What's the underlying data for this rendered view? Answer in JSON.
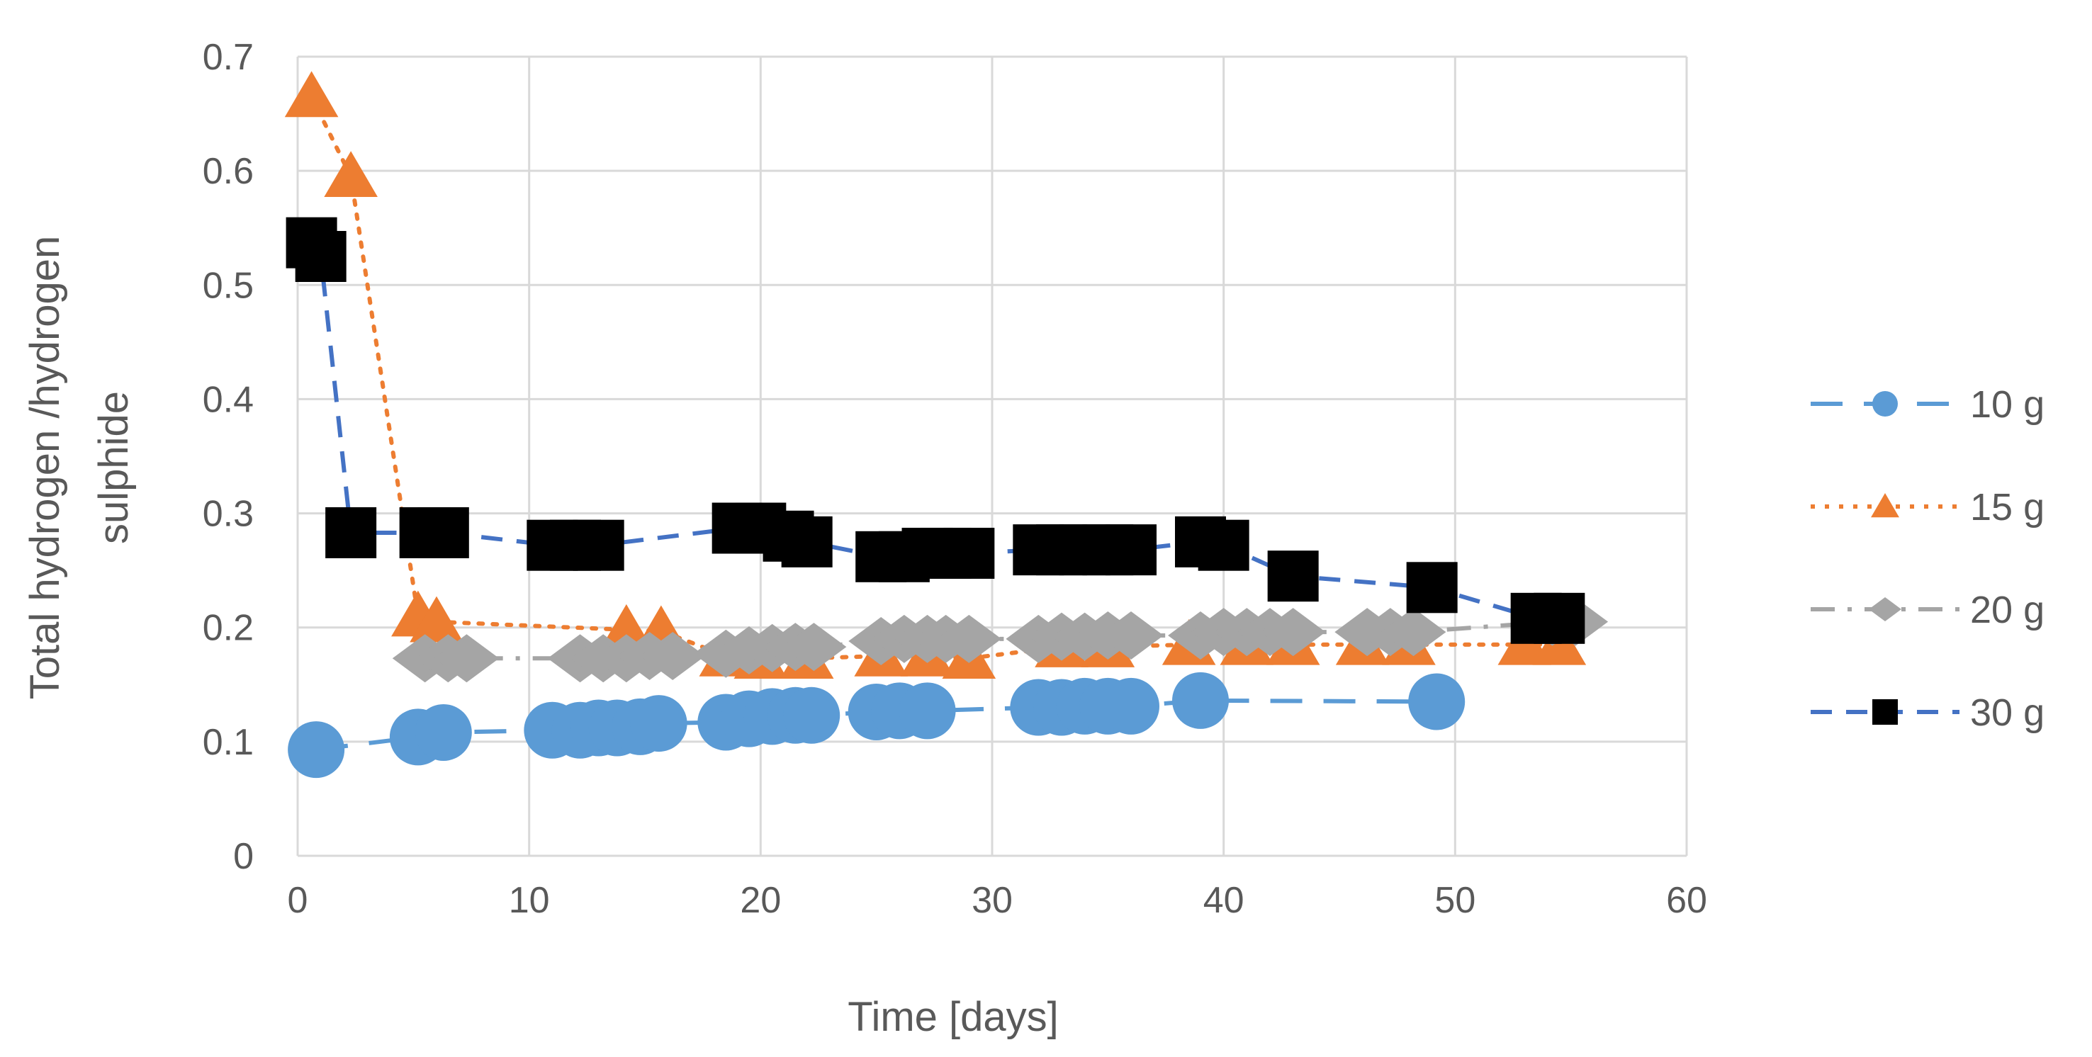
{
  "chart_data": {
    "type": "line",
    "xlabel": "Time [days]",
    "ylabel_lines": [
      "Total  hydrogen  /hydrogen",
      "sulphide"
    ],
    "xlim": [
      0,
      60
    ],
    "ylim": [
      0,
      0.7
    ],
    "xticks": [
      0,
      10,
      20,
      30,
      40,
      50,
      60
    ],
    "yticks": [
      0,
      0.1,
      0.2,
      0.3,
      0.4,
      0.5,
      0.6,
      0.7
    ],
    "xtick_labels": [
      "0",
      "10",
      "20",
      "30",
      "40",
      "50",
      "60"
    ],
    "ytick_labels": [
      "0",
      "0.1",
      "0.2",
      "0.3",
      "0.4",
      "0.5",
      "0.6",
      "0.7"
    ],
    "grid": true,
    "legend_position": "right",
    "series": [
      {
        "name": "10 g",
        "color": "#5B9BD5",
        "marker": "circle",
        "line_style": "long-dash",
        "points": [
          [
            0.8,
            0.093
          ],
          [
            5.2,
            0.104
          ],
          [
            6.3,
            0.108
          ],
          [
            11.0,
            0.11
          ],
          [
            12.2,
            0.11
          ],
          [
            13.0,
            0.112
          ],
          [
            13.8,
            0.112
          ],
          [
            14.8,
            0.113
          ],
          [
            15.6,
            0.116
          ],
          [
            18.5,
            0.117
          ],
          [
            19.5,
            0.12
          ],
          [
            20.5,
            0.122
          ],
          [
            21.5,
            0.123
          ],
          [
            22.2,
            0.123
          ],
          [
            25.0,
            0.126
          ],
          [
            26.0,
            0.127
          ],
          [
            27.2,
            0.127
          ],
          [
            32.0,
            0.13
          ],
          [
            33.0,
            0.13
          ],
          [
            34.0,
            0.131
          ],
          [
            35.0,
            0.131
          ],
          [
            36.0,
            0.131
          ],
          [
            39.0,
            0.136
          ],
          [
            49.2,
            0.135
          ]
        ]
      },
      {
        "name": "15 g",
        "color": "#ED7D31",
        "marker": "triangle",
        "line_style": "dotted",
        "points": [
          [
            0.6,
            0.665
          ],
          [
            2.3,
            0.595
          ],
          [
            5.2,
            0.21
          ],
          [
            6.0,
            0.205
          ],
          [
            14.2,
            0.198
          ],
          [
            15.7,
            0.197
          ],
          [
            18.5,
            0.175
          ],
          [
            20.0,
            0.173
          ],
          [
            22.0,
            0.173
          ],
          [
            25.2,
            0.175
          ],
          [
            27.2,
            0.175
          ],
          [
            29.0,
            0.173
          ],
          [
            33.0,
            0.183
          ],
          [
            35.0,
            0.183
          ],
          [
            38.5,
            0.185
          ],
          [
            41.0,
            0.185
          ],
          [
            43.0,
            0.185
          ],
          [
            46.0,
            0.185
          ],
          [
            48.0,
            0.185
          ],
          [
            53.0,
            0.185
          ],
          [
            54.5,
            0.185
          ]
        ]
      },
      {
        "name": "20 g",
        "color": "#A5A5A5",
        "marker": "diamond",
        "line_style": "dash-dot",
        "points": [
          [
            5.5,
            0.173
          ],
          [
            6.5,
            0.173
          ],
          [
            7.3,
            0.173
          ],
          [
            12.2,
            0.173
          ],
          [
            13.2,
            0.173
          ],
          [
            14.2,
            0.173
          ],
          [
            15.2,
            0.175
          ],
          [
            16.2,
            0.175
          ],
          [
            18.5,
            0.177
          ],
          [
            19.5,
            0.18
          ],
          [
            20.5,
            0.182
          ],
          [
            21.5,
            0.183
          ],
          [
            22.3,
            0.183
          ],
          [
            25.2,
            0.188
          ],
          [
            26.2,
            0.19
          ],
          [
            27.2,
            0.19
          ],
          [
            28.0,
            0.19
          ],
          [
            29.0,
            0.19
          ],
          [
            32.0,
            0.19
          ],
          [
            33.0,
            0.192
          ],
          [
            34.0,
            0.192
          ],
          [
            35.0,
            0.193
          ],
          [
            36.0,
            0.193
          ],
          [
            39.0,
            0.193
          ],
          [
            40.0,
            0.196
          ],
          [
            41.0,
            0.196
          ],
          [
            42.0,
            0.196
          ],
          [
            43.0,
            0.196
          ],
          [
            46.2,
            0.196
          ],
          [
            47.2,
            0.196
          ],
          [
            48.2,
            0.196
          ],
          [
            54.2,
            0.205
          ],
          [
            55.2,
            0.205
          ]
        ]
      },
      {
        "name": "30 g",
        "color": "#000000",
        "line_color": "#4472C4",
        "marker": "square",
        "line_style": "dashed",
        "points": [
          [
            0.6,
            0.537
          ],
          [
            1.0,
            0.525
          ],
          [
            2.3,
            0.283
          ],
          [
            5.5,
            0.283
          ],
          [
            6.3,
            0.283
          ],
          [
            11.0,
            0.272
          ],
          [
            12.0,
            0.272
          ],
          [
            13.0,
            0.272
          ],
          [
            19.0,
            0.287
          ],
          [
            20.0,
            0.287
          ],
          [
            21.2,
            0.28
          ],
          [
            22.0,
            0.275
          ],
          [
            25.2,
            0.262
          ],
          [
            26.2,
            0.262
          ],
          [
            27.2,
            0.265
          ],
          [
            28.0,
            0.265
          ],
          [
            29.0,
            0.265
          ],
          [
            32.0,
            0.268
          ],
          [
            33.0,
            0.268
          ],
          [
            34.0,
            0.268
          ],
          [
            35.0,
            0.268
          ],
          [
            36.0,
            0.268
          ],
          [
            39.0,
            0.275
          ],
          [
            40.0,
            0.272
          ],
          [
            43.0,
            0.245
          ],
          [
            49.0,
            0.235
          ],
          [
            53.5,
            0.208
          ],
          [
            54.5,
            0.208
          ]
        ]
      }
    ]
  }
}
